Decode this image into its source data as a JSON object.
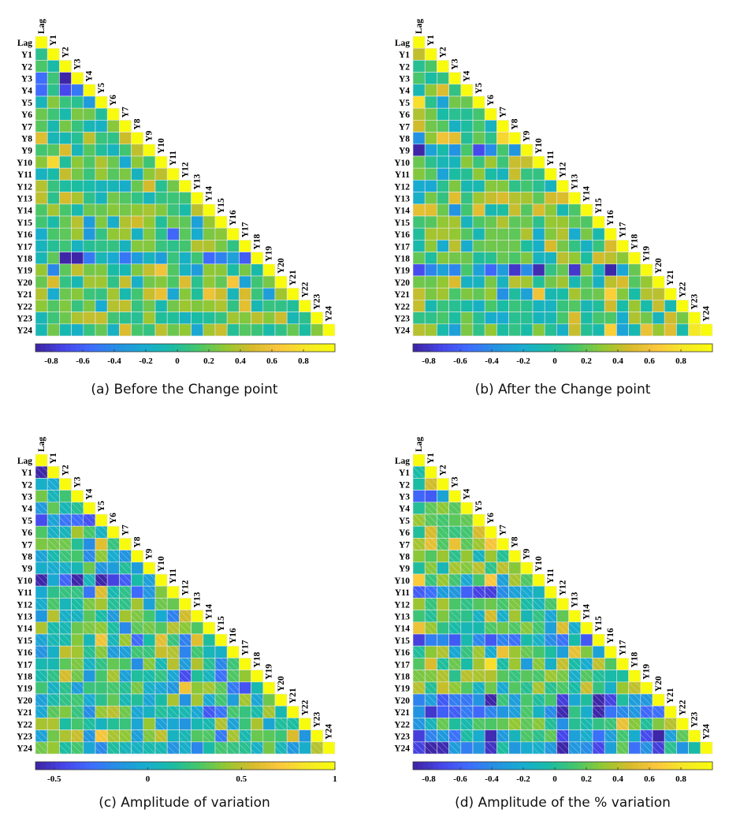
{
  "chart_data": [
    {
      "type": "heatmap",
      "caption": "(a) Before the Change point",
      "seed": 11,
      "row_labels": [
        "Lag",
        "Y1",
        "Y2",
        "Y3",
        "Y4",
        "Y5",
        "Y6",
        "Y7",
        "Y8",
        "Y9",
        "Y10",
        "Y11",
        "Y12",
        "Y13",
        "Y14",
        "Y15",
        "Y16",
        "Y17",
        "Y18",
        "Y19",
        "Y20",
        "Y21",
        "Y22",
        "Y23",
        "Y24"
      ],
      "col_labels": [
        "Lag",
        "Y1",
        "Y2",
        "Y3",
        "Y4",
        "Y5",
        "Y6",
        "Y7",
        "Y8",
        "Y9",
        "Y10",
        "Y11",
        "Y12",
        "Y13",
        "Y14",
        "Y15",
        "Y16",
        "Y17",
        "Y18",
        "Y19",
        "Y20",
        "Y21",
        "Y22",
        "Y23",
        "Y24"
      ],
      "colorbar_ticks": [
        "-0.8",
        "-0.6",
        "-0.4",
        "-0.2",
        "0",
        "0.2",
        "0.4",
        "0.6",
        "0.8"
      ],
      "colorbar_tick_values": [
        -0.8,
        -0.6,
        -0.4,
        -0.2,
        0,
        0.2,
        0.4,
        0.6,
        0.8
      ],
      "clim": [
        -0.9,
        1.0
      ],
      "hatched_lower": false
    },
    {
      "type": "heatmap",
      "caption": "(b) After the Change point",
      "seed": 29,
      "row_labels": [
        "Lag",
        "Y1",
        "Y2",
        "Y3",
        "Y4",
        "Y5",
        "Y6",
        "Y7",
        "Y8",
        "Y9",
        "Y10",
        "Y11",
        "Y12",
        "Y13",
        "Y14",
        "Y15",
        "Y16",
        "Y17",
        "Y18",
        "Y19",
        "Y20",
        "Y21",
        "Y22",
        "Y23",
        "Y24"
      ],
      "col_labels": [
        "Lag",
        "Y1",
        "Y2",
        "Y3",
        "Y4",
        "Y5",
        "Y6",
        "Y7",
        "Y8",
        "Y9",
        "Y10",
        "Y11",
        "Y12",
        "Y13",
        "Y14",
        "Y15",
        "Y16",
        "Y17",
        "Y18",
        "Y19",
        "Y20",
        "Y21",
        "Y22",
        "Y23",
        "Y24"
      ],
      "colorbar_ticks": [
        "-0.8",
        "-0.6",
        "-0.4",
        "-0.2",
        "0",
        "0.2",
        "0.4",
        "0.6",
        "0.8"
      ],
      "colorbar_tick_values": [
        -0.8,
        -0.6,
        -0.4,
        -0.2,
        0,
        0.2,
        0.4,
        0.6,
        0.8
      ],
      "clim": [
        -0.9,
        1.0
      ],
      "hatched_lower": false
    },
    {
      "type": "heatmap",
      "caption": "(c) Amplitude of variation",
      "seed": 47,
      "row_labels": [
        "Lag",
        "Y1",
        "Y2",
        "Y3",
        "Y4",
        "Y5",
        "Y6",
        "Y7",
        "Y8",
        "Y9",
        "Y10",
        "Y11",
        "Y12",
        "Y13",
        "Y14",
        "Y15",
        "Y16",
        "Y17",
        "Y18",
        "Y19",
        "Y20",
        "Y21",
        "Y22",
        "Y23",
        "Y24"
      ],
      "col_labels": [
        "Lag",
        "Y1",
        "Y2",
        "Y3",
        "Y4",
        "Y5",
        "Y6",
        "Y7",
        "Y8",
        "Y9",
        "Y10",
        "Y11",
        "Y12",
        "Y13",
        "Y14",
        "Y15",
        "Y16",
        "Y17",
        "Y18",
        "Y19",
        "Y20",
        "Y21",
        "Y22",
        "Y23",
        "Y24"
      ],
      "colorbar_ticks": [
        "-0.5",
        "0",
        "0.5",
        "1"
      ],
      "colorbar_tick_values": [
        -0.5,
        0,
        0.5,
        1.0
      ],
      "clim": [
        -0.6,
        1.0
      ],
      "hatched_lower": true
    },
    {
      "type": "heatmap",
      "caption": "(d) Amplitude of the % variation",
      "seed": 83,
      "row_labels": [
        "Lag",
        "Y1",
        "Y2",
        "Y3",
        "Y4",
        "Y5",
        "Y6",
        "Y7",
        "Y8",
        "Y9",
        "Y10",
        "Y11",
        "Y12",
        "Y13",
        "Y14",
        "Y15",
        "Y16",
        "Y17",
        "Y18",
        "Y19",
        "Y20",
        "Y21",
        "Y22",
        "Y23",
        "Y24"
      ],
      "col_labels": [
        "Lag",
        "Y1",
        "Y2",
        "Y3",
        "Y4",
        "Y5",
        "Y6",
        "Y7",
        "Y8",
        "Y9",
        "Y10",
        "Y11",
        "Y12",
        "Y13",
        "Y14",
        "Y15",
        "Y16",
        "Y17",
        "Y18",
        "Y19",
        "Y20",
        "Y21",
        "Y22",
        "Y23",
        "Y24"
      ],
      "colorbar_ticks": [
        "-0.8",
        "-0.6",
        "-0.4",
        "-0.2",
        "0",
        "0.2",
        "0.4",
        "0.6",
        "0.8"
      ],
      "colorbar_tick_values": [
        -0.8,
        -0.6,
        -0.4,
        -0.2,
        0,
        0.2,
        0.4,
        0.6,
        0.8
      ],
      "clim": [
        -0.9,
        1.0
      ],
      "hatched_lower": true
    }
  ],
  "colormap": "parula",
  "colormap_stops": [
    "#3e26a8",
    "#4746eb",
    "#3e6dfd",
    "#2492e2",
    "#18acd0",
    "#19bca5",
    "#47c66a",
    "#93c832",
    "#d6bb2c",
    "#fbc73d",
    "#f5e727",
    "#f9fb0e"
  ]
}
